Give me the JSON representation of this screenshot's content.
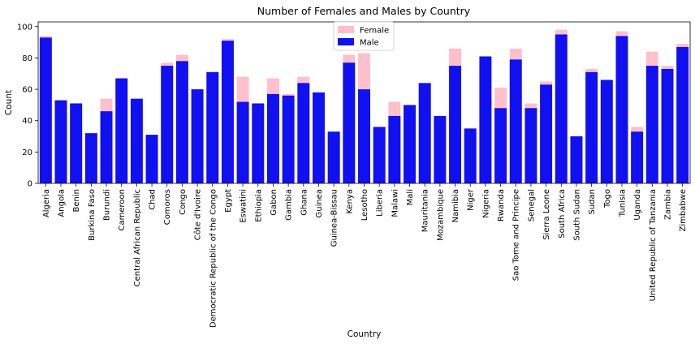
{
  "chart_data": {
    "type": "bar",
    "title": "Number of Females and Males by Country",
    "xlabel": "Country",
    "ylabel": "Count",
    "ylim": [
      0,
      103
    ],
    "yticks": [
      0,
      20,
      40,
      60,
      80,
      100
    ],
    "grid": false,
    "legend_position": "top-center",
    "categories": [
      "Algeria",
      "Angola",
      "Benin",
      "Burkina Faso",
      "Burundi",
      "Cameroon",
      "Central African Republic",
      "Chad",
      "Comoros",
      "Congo",
      "Côte d'Ivoire",
      "Democratic Republic of the Congo",
      "Egypt",
      "Eswatini",
      "Ethiopia",
      "Gabon",
      "Gambia",
      "Ghana",
      "Guinea",
      "Guinea-Bissau",
      "Kenya",
      "Lesotho",
      "Liberia",
      "Malawi",
      "Mali",
      "Mauritania",
      "Mozambique",
      "Namibia",
      "Niger",
      "Nigeria",
      "Rwanda",
      "Sao Tome and Principe",
      "Senegal",
      "Sierra Leone",
      "South Africa",
      "South Sudan",
      "Sudan",
      "Togo",
      "Tunisia",
      "Uganda",
      "United Republic of Tanzania",
      "Zambia",
      "Zimbabwe"
    ],
    "series": [
      {
        "name": "Female",
        "color": "#ffc0cb",
        "values": [
          94,
          53,
          51,
          32,
          54,
          67,
          54,
          31,
          77,
          82,
          60,
          71,
          92,
          68,
          51,
          67,
          57,
          68,
          58,
          33,
          82,
          83,
          36,
          52,
          50,
          64,
          43,
          86,
          35,
          81,
          61,
          86,
          51,
          65,
          98,
          30,
          73,
          66,
          97,
          36,
          84,
          75,
          89
        ]
      },
      {
        "name": "Male",
        "color": "#1010f0",
        "values": [
          93,
          53,
          51,
          32,
          46,
          67,
          54,
          31,
          75,
          78,
          60,
          71,
          91,
          52,
          51,
          57,
          56,
          64,
          58,
          33,
          77,
          60,
          36,
          43,
          50,
          64,
          43,
          75,
          35,
          81,
          48,
          79,
          48,
          63,
          95,
          30,
          71,
          66,
          94,
          33,
          75,
          73,
          87
        ]
      }
    ]
  }
}
